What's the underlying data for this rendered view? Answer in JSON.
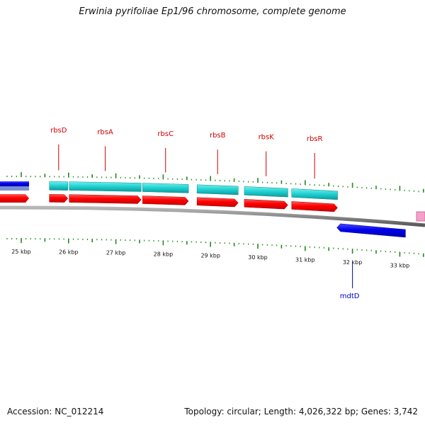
{
  "title": "Erwinia pyrifoliae Ep1/96 chromosome, complete genome",
  "footer": {
    "accession_label": "Accession:",
    "accession": "NC_012214",
    "topology": "Topology: circular",
    "length": "Length: 4,026,322 bp",
    "genes": "Genes: 3,742"
  },
  "colors": {
    "forward_gene": "#ff0000",
    "reverse_gene": "#0000ee",
    "cds_band": "#1ecfcf",
    "backbone": "#8a8a8a",
    "tick": "#228822",
    "forward_label": "#cc0000",
    "reverse_label": "#0000cc",
    "pink_feature": "#f4a0c8"
  },
  "scale": {
    "unit": "kbp",
    "major_ticks": [
      {
        "kbp": 25,
        "label": "25 kbp"
      },
      {
        "kbp": 26,
        "label": "26 kbp"
      },
      {
        "kbp": 27,
        "label": "27 kbp"
      },
      {
        "kbp": 28,
        "label": "28 kbp"
      },
      {
        "kbp": 29,
        "label": "29 kbp"
      },
      {
        "kbp": 30,
        "label": "30 kbp"
      },
      {
        "kbp": 31,
        "label": "31 kbp"
      },
      {
        "kbp": 32,
        "label": "32 kbp"
      },
      {
        "kbp": 33,
        "label": "33 kbp"
      }
    ]
  },
  "genes_forward": [
    {
      "name": "rbsD",
      "start_kbp": 25.58,
      "end_kbp": 26.0
    },
    {
      "name": "rbsA",
      "start_kbp": 26.0,
      "end_kbp": 27.55
    },
    {
      "name": "rbsC",
      "start_kbp": 27.55,
      "end_kbp": 28.55
    },
    {
      "name": "rbsB",
      "start_kbp": 28.7,
      "end_kbp": 29.6
    },
    {
      "name": "rbsK",
      "start_kbp": 29.7,
      "end_kbp": 30.65
    },
    {
      "name": "rbsR",
      "start_kbp": 30.7,
      "end_kbp": 31.7
    }
  ],
  "genes_reverse": [
    {
      "name": "mdtD",
      "start_kbp": 31.7,
      "end_kbp": 33.15
    }
  ]
}
